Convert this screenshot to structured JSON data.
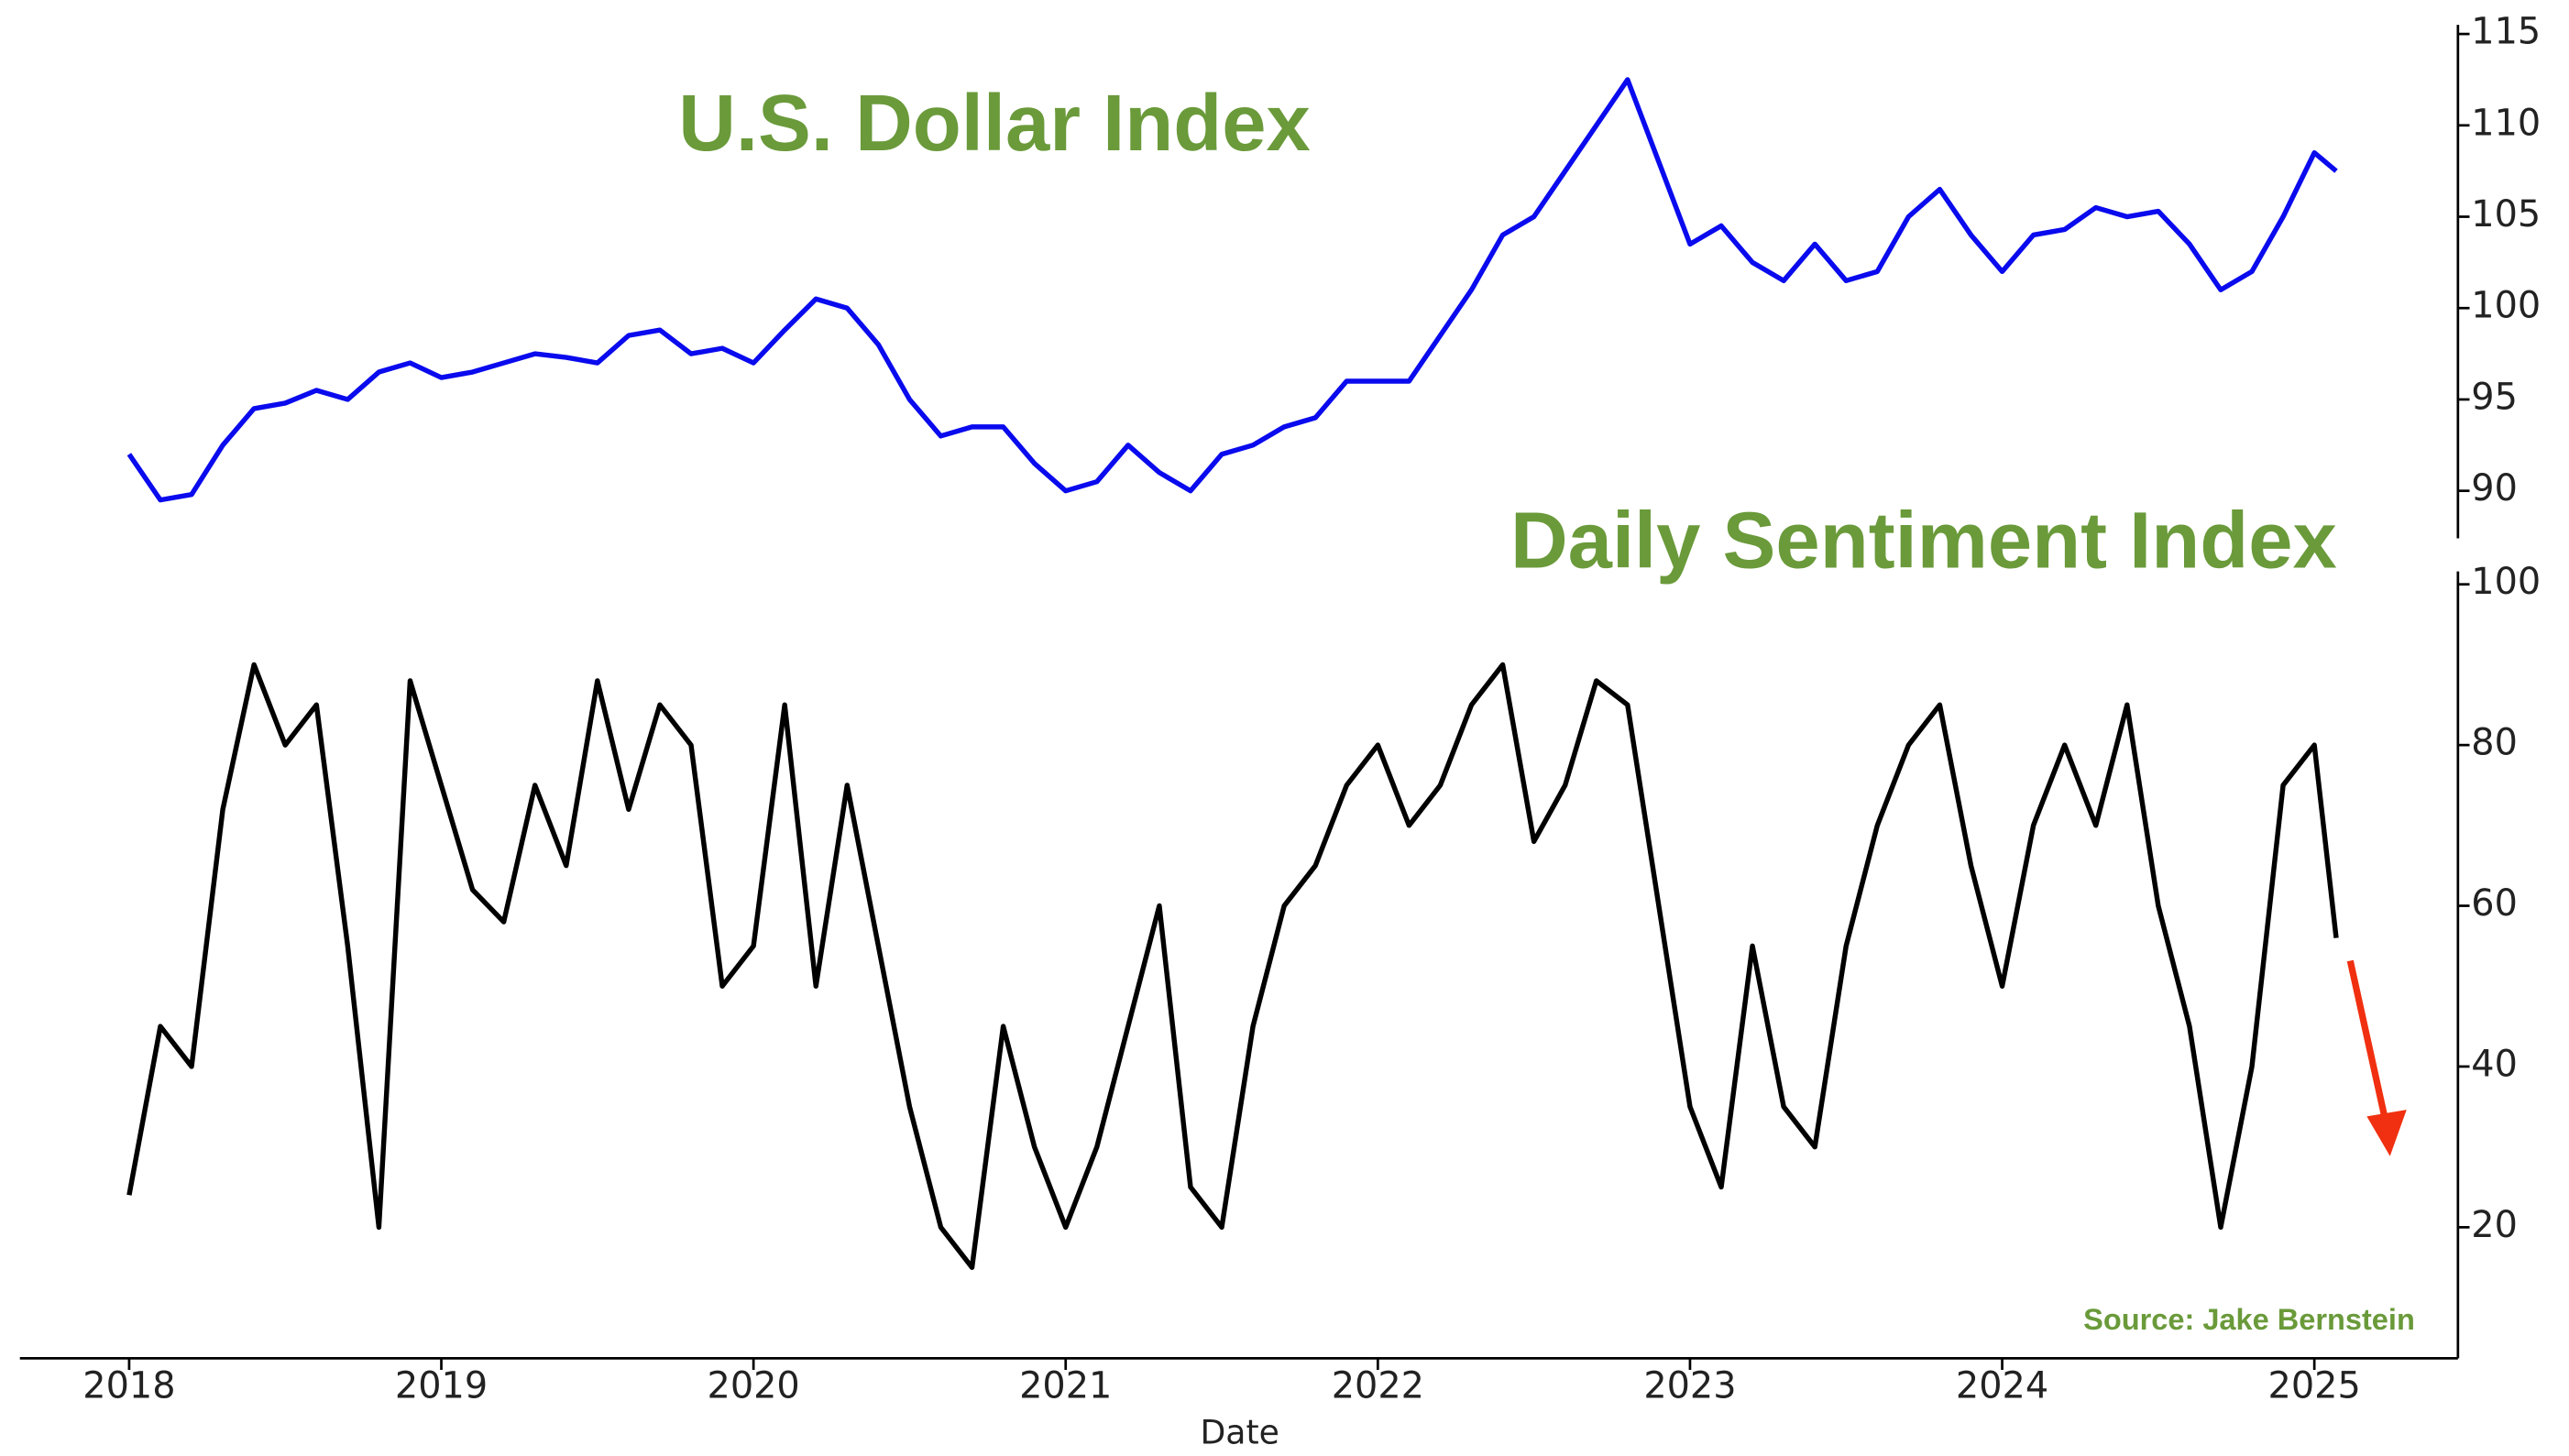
{
  "chart_data": [
    {
      "type": "line",
      "title": "U.S. Dollar Index",
      "color": "#0a0aee",
      "x": [
        2018.0,
        2018.1,
        2018.2,
        2018.3,
        2018.4,
        2018.5,
        2018.6,
        2018.7,
        2018.8,
        2018.9,
        2019.0,
        2019.1,
        2019.2,
        2019.3,
        2019.4,
        2019.5,
        2019.6,
        2019.7,
        2019.8,
        2019.9,
        2020.0,
        2020.1,
        2020.2,
        2020.3,
        2020.4,
        2020.5,
        2020.6,
        2020.7,
        2020.8,
        2020.9,
        2021.0,
        2021.1,
        2021.2,
        2021.3,
        2021.4,
        2021.5,
        2021.6,
        2021.7,
        2021.8,
        2021.9,
        2022.0,
        2022.1,
        2022.2,
        2022.3,
        2022.4,
        2022.5,
        2022.6,
        2022.7,
        2022.8,
        2022.9,
        2023.0,
        2023.1,
        2023.2,
        2023.3,
        2023.4,
        2023.5,
        2023.6,
        2023.7,
        2023.8,
        2023.9,
        2024.0,
        2024.1,
        2024.2,
        2024.3,
        2024.4,
        2024.5,
        2024.6,
        2024.7,
        2024.8,
        2024.9,
        2025.0,
        2025.07
      ],
      "values": [
        92,
        89.5,
        89.8,
        92.5,
        94.5,
        94.8,
        95.5,
        95,
        96.5,
        97,
        96.2,
        96.5,
        97,
        97.5,
        97.3,
        97,
        98.5,
        98.8,
        97.5,
        97.8,
        97,
        98.8,
        100.5,
        100,
        98,
        95,
        93,
        93.5,
        93.5,
        91.5,
        90,
        90.5,
        92.5,
        91,
        90,
        92,
        92.5,
        93.5,
        94,
        96,
        96,
        96,
        98.5,
        101,
        104,
        105,
        107.5,
        110,
        112.5,
        108,
        103.5,
        104.5,
        102.5,
        101.5,
        103.5,
        101.5,
        102,
        105,
        106.5,
        104,
        102,
        104,
        104.3,
        105.5,
        105,
        105.3,
        103.5,
        101,
        102,
        105,
        108.5,
        107.5
      ],
      "xlim": [
        2017.65,
        2025.46
      ],
      "ylim": [
        87.4,
        115.5
      ],
      "yticks": [
        90,
        95,
        100,
        105,
        110,
        115
      ]
    },
    {
      "type": "line",
      "title": "Daily Sentiment Index",
      "color": "#000000",
      "xlabel": "Date",
      "annotation": "Source: Jake Bernstein",
      "x": [
        2018.0,
        2018.1,
        2018.2,
        2018.3,
        2018.4,
        2018.5,
        2018.6,
        2018.7,
        2018.8,
        2018.9,
        2019.0,
        2019.1,
        2019.2,
        2019.3,
        2019.4,
        2019.5,
        2019.6,
        2019.7,
        2019.8,
        2019.9,
        2020.0,
        2020.1,
        2020.2,
        2020.3,
        2020.4,
        2020.5,
        2020.6,
        2020.7,
        2020.8,
        2020.9,
        2021.0,
        2021.1,
        2021.2,
        2021.3,
        2021.4,
        2021.5,
        2021.6,
        2021.7,
        2021.8,
        2021.9,
        2022.0,
        2022.1,
        2022.2,
        2022.3,
        2022.4,
        2022.5,
        2022.6,
        2022.7,
        2022.8,
        2022.9,
        2023.0,
        2023.1,
        2023.2,
        2023.3,
        2023.4,
        2023.5,
        2023.6,
        2023.7,
        2023.8,
        2023.9,
        2024.0,
        2024.1,
        2024.2,
        2024.3,
        2024.4,
        2024.5,
        2024.6,
        2024.7,
        2024.8,
        2024.9,
        2025.0,
        2025.07
      ],
      "values": [
        24,
        45,
        40,
        72,
        90,
        80,
        85,
        55,
        20,
        88,
        75,
        62,
        58,
        75,
        65,
        88,
        72,
        85,
        80,
        50,
        55,
        85,
        50,
        75,
        55,
        35,
        20,
        15,
        45,
        30,
        20,
        30,
        45,
        60,
        25,
        20,
        45,
        60,
        65,
        75,
        80,
        70,
        75,
        85,
        90,
        68,
        75,
        88,
        85,
        60,
        35,
        25,
        55,
        35,
        30,
        55,
        70,
        80,
        85,
        65,
        50,
        70,
        80,
        70,
        85,
        60,
        45,
        20,
        40,
        75,
        80,
        56
      ],
      "xlim": [
        2017.65,
        2025.46
      ],
      "ylim": [
        3.7,
        101.6
      ],
      "yticks": [
        20,
        40,
        60,
        80,
        100
      ],
      "xticks": [
        2018,
        2019,
        2020,
        2021,
        2022,
        2023,
        2024,
        2025
      ]
    }
  ]
}
